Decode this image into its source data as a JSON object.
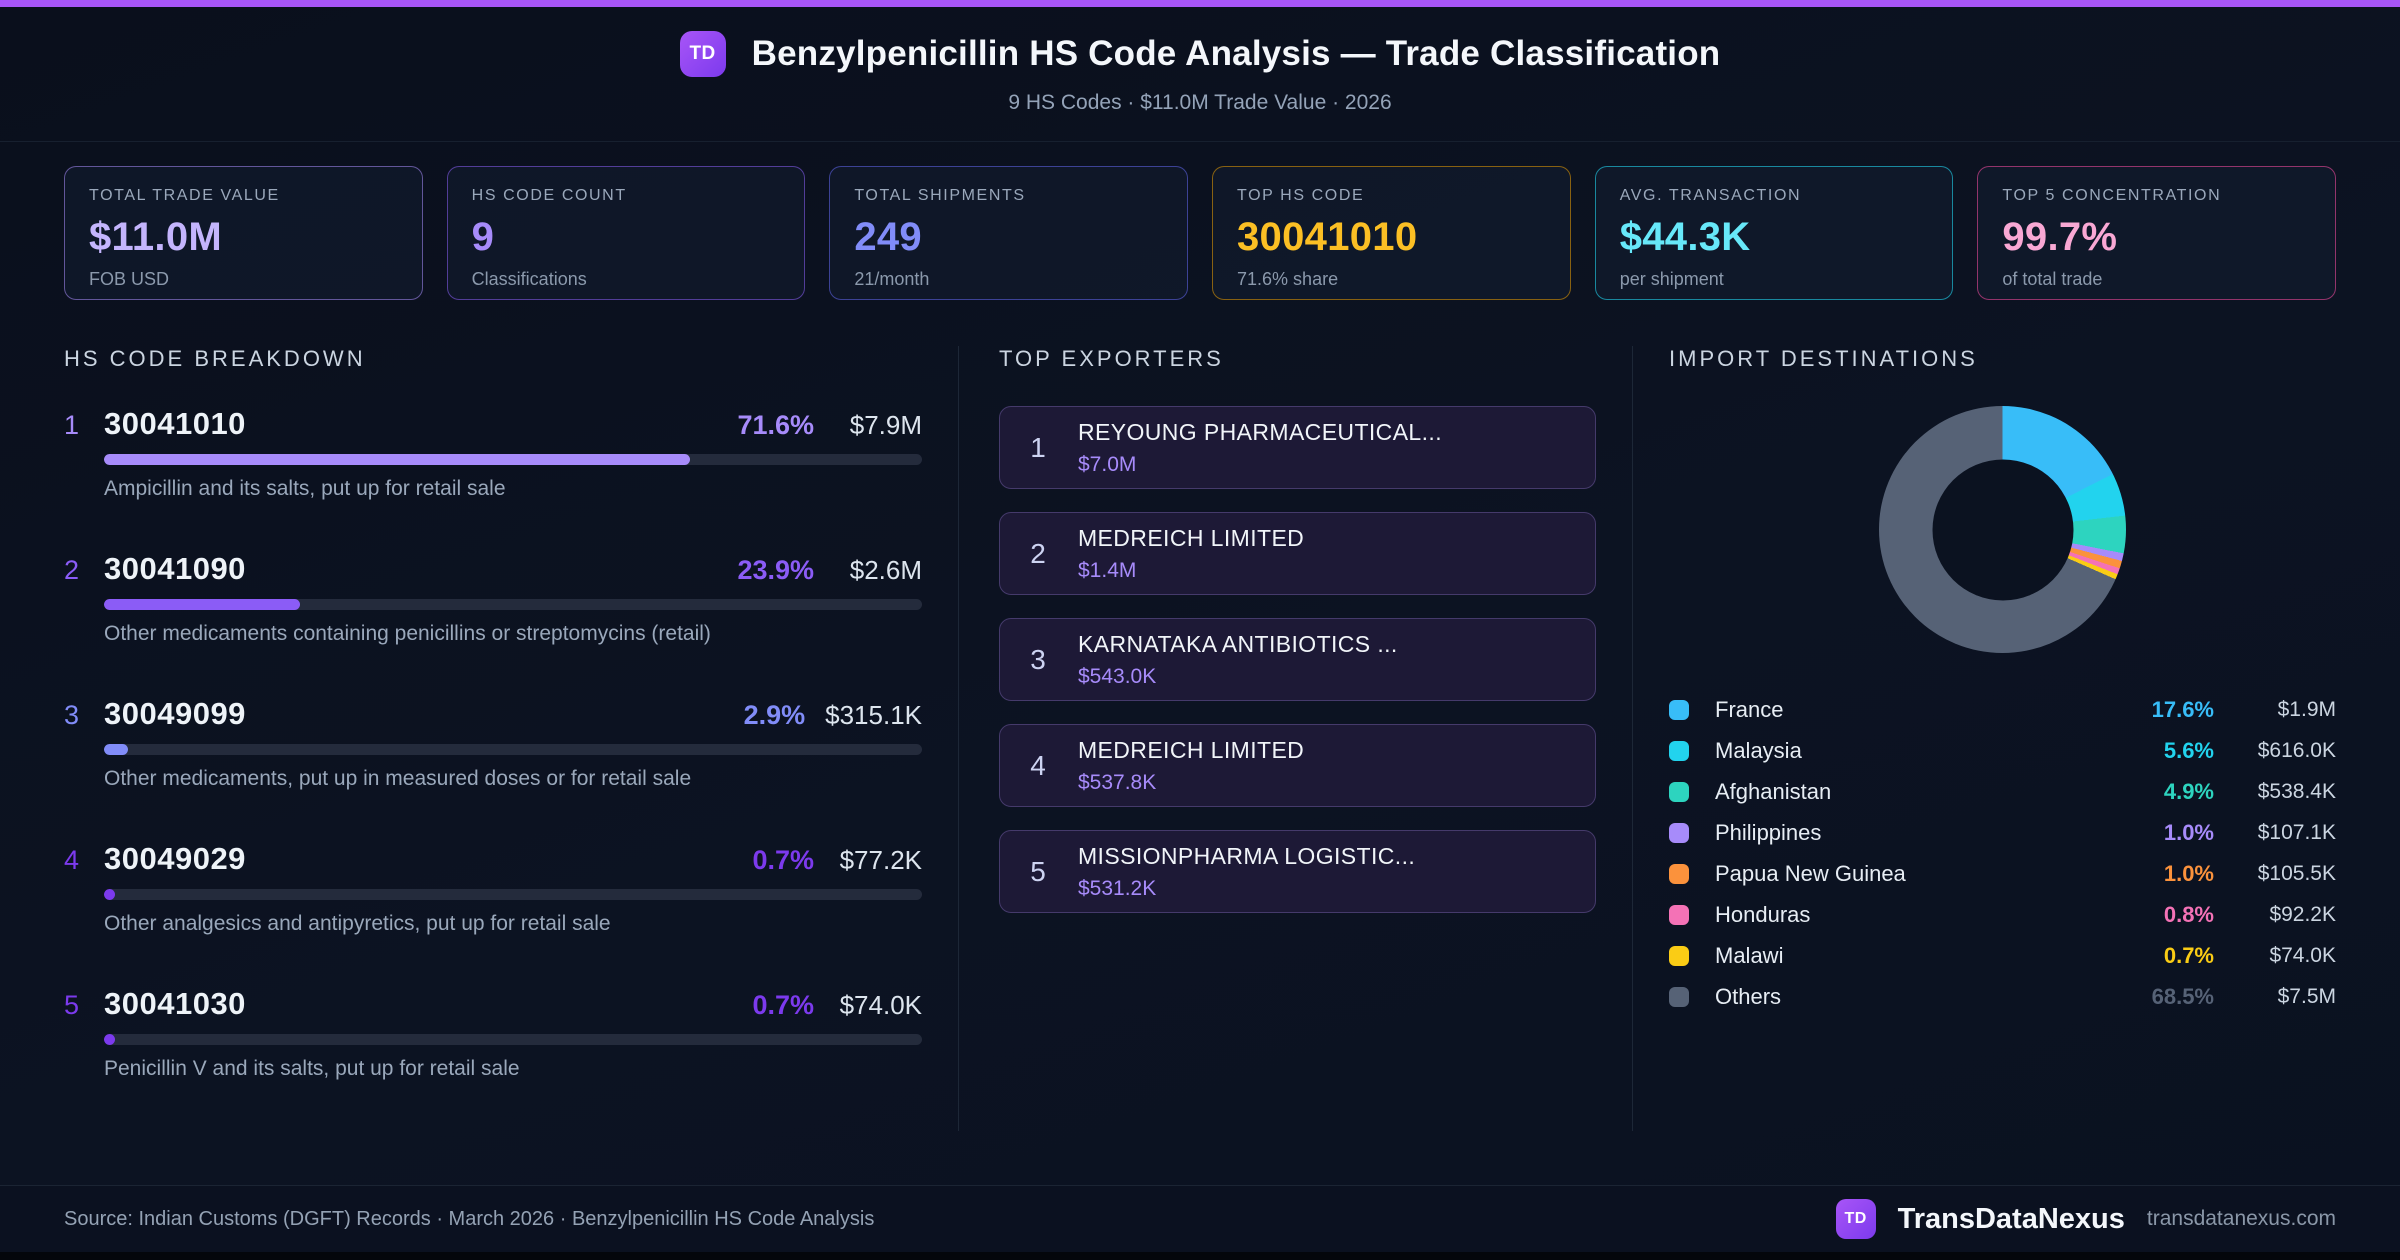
{
  "theme": {
    "accent_bar": "#a855f7"
  },
  "header": {
    "logo": "TD",
    "title": "Benzylpenicillin HS Code Analysis — Trade Classification",
    "subtitle": "9 HS Codes · $11.0M Trade Value · 2026"
  },
  "stats": [
    {
      "label": "TOTAL TRADE VALUE",
      "value": "$11.0M",
      "sub": "FOB USD",
      "color": "#c4b5fd",
      "border": "rgba(167,139,250,0.55)"
    },
    {
      "label": "HS CODE COUNT",
      "value": "9",
      "sub": "Classifications",
      "color": "#a78bfa",
      "border": "rgba(139,92,246,0.55)"
    },
    {
      "label": "TOTAL SHIPMENTS",
      "value": "249",
      "sub": "21/month",
      "color": "#818cf8",
      "border": "rgba(99,102,241,0.55)"
    },
    {
      "label": "TOP HS CODE",
      "value": "30041010",
      "sub": "71.6% share",
      "color": "#fbbf24",
      "border": "rgba(202,138,4,0.65)"
    },
    {
      "label": "AVG. TRANSACTION",
      "value": "$44.3K",
      "sub": "per shipment",
      "color": "#67e8f9",
      "border": "rgba(34,211,238,0.6)"
    },
    {
      "label": "TOP 5 CONCENTRATION",
      "value": "99.7%",
      "sub": "of total trade",
      "color": "#f9a8d4",
      "border": "rgba(236,72,153,0.6)"
    }
  ],
  "breakdown": {
    "title": "HS CODE BREAKDOWN",
    "items": [
      {
        "rank": "1",
        "code": "30041010",
        "share": "71.6%",
        "pct": 71.6,
        "value": "$7.9M",
        "description": "Ampicillin and its salts, put up for retail sale",
        "color": "#a78bfa"
      },
      {
        "rank": "2",
        "code": "30041090",
        "share": "23.9%",
        "pct": 23.9,
        "value": "$2.6M",
        "description": "Other medicaments containing penicillins or streptomycins (retail)",
        "color": "#8b5cf6"
      },
      {
        "rank": "3",
        "code": "30049099",
        "share": "2.9%",
        "pct": 2.9,
        "value": "$315.1K",
        "description": "Other medicaments, put up in measured doses or for retail sale",
        "color": "#818cf8"
      },
      {
        "rank": "4",
        "code": "30049029",
        "share": "0.7%",
        "pct": 0.7,
        "value": "$77.2K",
        "description": "Other analgesics and antipyretics, put up for retail sale",
        "color": "#7c3aed"
      },
      {
        "rank": "5",
        "code": "30041030",
        "share": "0.7%",
        "pct": 0.7,
        "value": "$74.0K",
        "description": "Penicillin V and its salts, put up for retail sale",
        "color": "#7c3aed"
      }
    ]
  },
  "exporters": {
    "title": "TOP EXPORTERS",
    "items": [
      {
        "rank": "1",
        "name": "REYOUNG PHARMACEUTICAL...",
        "value": "$7.0M"
      },
      {
        "rank": "2",
        "name": "MEDREICH LIMITED",
        "value": "$1.4M"
      },
      {
        "rank": "3",
        "name": "KARNATAKA ANTIBIOTICS ...",
        "value": "$543.0K"
      },
      {
        "rank": "4",
        "name": "MEDREICH LIMITED",
        "value": "$537.8K"
      },
      {
        "rank": "5",
        "name": "MISSIONPHARMA LOGISTIC...",
        "value": "$531.2K"
      }
    ]
  },
  "destinations": {
    "title": "IMPORT DESTINATIONS"
  },
  "chart_data": {
    "type": "pie",
    "subtype": "donut",
    "title": "IMPORT DESTINATIONS",
    "legend_position": "bottom",
    "slices": [
      {
        "label": "France",
        "pct": 17.6,
        "value": "$1.9M",
        "color": "#38bdf8"
      },
      {
        "label": "Malaysia",
        "pct": 5.6,
        "value": "$616.0K",
        "color": "#22d3ee"
      },
      {
        "label": "Afghanistan",
        "pct": 4.9,
        "value": "$538.4K",
        "color": "#2dd4bf"
      },
      {
        "label": "Philippines",
        "pct": 1.0,
        "value": "$107.1K",
        "color": "#a78bfa"
      },
      {
        "label": "Papua New Guinea",
        "pct": 1.0,
        "value": "$105.5K",
        "color": "#fb923c"
      },
      {
        "label": "Honduras",
        "pct": 0.8,
        "value": "$92.2K",
        "color": "#f472b6"
      },
      {
        "label": "Malawi",
        "pct": 0.7,
        "value": "$74.0K",
        "color": "#facc15"
      },
      {
        "label": "Others",
        "pct": 68.5,
        "value": "$7.5M",
        "color": "#566276"
      }
    ]
  },
  "footer": {
    "source": "Source: Indian Customs (DGFT) Records · March 2026 · Benzylpenicillin HS Code Analysis",
    "logo": "TD",
    "brand": "TransDataNexus",
    "domain": "transdatanexus.com"
  }
}
